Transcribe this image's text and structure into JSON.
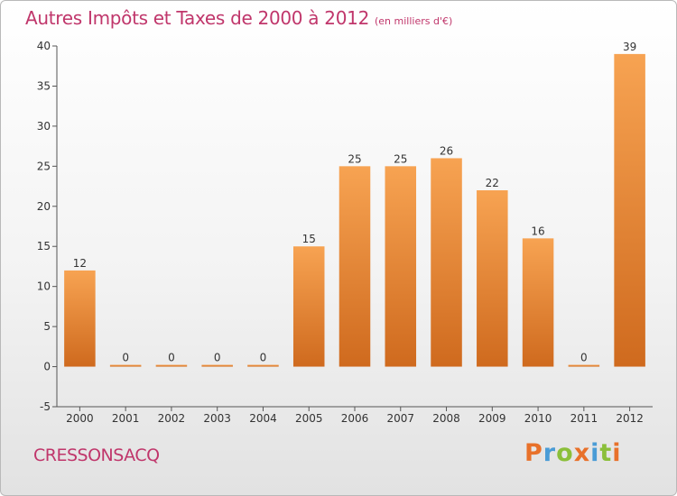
{
  "chart_data": {
    "type": "bar",
    "title": "Autres Impôts et Taxes de 2000 à 2012",
    "subtitle": "(en milliers d'€)",
    "categories": [
      "2000",
      "2001",
      "2002",
      "2003",
      "2004",
      "2005",
      "2006",
      "2007",
      "2008",
      "2009",
      "2010",
      "2011",
      "2012"
    ],
    "values": [
      12,
      0,
      0,
      0,
      0,
      15,
      25,
      25,
      26,
      22,
      16,
      0,
      39
    ],
    "ylim": [
      -5,
      40
    ],
    "yticks": [
      -5,
      0,
      5,
      10,
      15,
      20,
      25,
      30,
      35,
      40
    ],
    "grid": false,
    "bar_color": "#e8873a",
    "legend": "none"
  },
  "commune": "CRESSONSACQ",
  "logo": {
    "text": "Proxiti",
    "letters": [
      {
        "ch": "P",
        "color": "#e8712a"
      },
      {
        "ch": "r",
        "color": "#4a9cd6"
      },
      {
        "ch": "o",
        "color": "#8bbf3a"
      },
      {
        "ch": "x",
        "color": "#e8712a"
      },
      {
        "ch": "i",
        "color": "#4a9cd6"
      },
      {
        "ch": "t",
        "color": "#8bbf3a"
      },
      {
        "ch": "i",
        "color": "#e8712a"
      }
    ]
  }
}
